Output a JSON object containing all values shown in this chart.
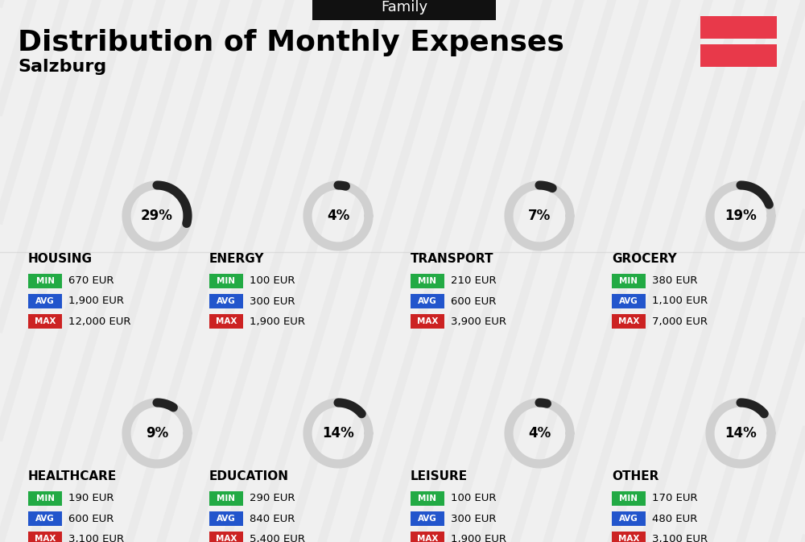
{
  "title": "Distribution of Monthly Expenses",
  "subtitle": "Salzburg",
  "header_label": "Family",
  "bg_color": "#f0f0f0",
  "categories": [
    {
      "name": "HOUSING",
      "pct": 29,
      "row": 0,
      "col": 0,
      "min": "670 EUR",
      "avg": "1,900 EUR",
      "max": "12,000 EUR"
    },
    {
      "name": "ENERGY",
      "pct": 4,
      "row": 0,
      "col": 1,
      "min": "100 EUR",
      "avg": "300 EUR",
      "max": "1,900 EUR"
    },
    {
      "name": "TRANSPORT",
      "pct": 7,
      "row": 0,
      "col": 2,
      "min": "210 EUR",
      "avg": "600 EUR",
      "max": "3,900 EUR"
    },
    {
      "name": "GROCERY",
      "pct": 19,
      "row": 0,
      "col": 3,
      "min": "380 EUR",
      "avg": "1,100 EUR",
      "max": "7,000 EUR"
    },
    {
      "name": "HEALTHCARE",
      "pct": 9,
      "row": 1,
      "col": 0,
      "min": "190 EUR",
      "avg": "600 EUR",
      "max": "3,100 EUR"
    },
    {
      "name": "EDUCATION",
      "pct": 14,
      "row": 1,
      "col": 1,
      "min": "290 EUR",
      "avg": "840 EUR",
      "max": "5,400 EUR"
    },
    {
      "name": "LEISURE",
      "pct": 4,
      "row": 1,
      "col": 2,
      "min": "100 EUR",
      "avg": "300 EUR",
      "max": "1,900 EUR"
    },
    {
      "name": "OTHER",
      "pct": 14,
      "row": 1,
      "col": 3,
      "min": "170 EUR",
      "avg": "480 EUR",
      "max": "3,100 EUR"
    }
  ],
  "color_min": "#22aa44",
  "color_avg": "#2255cc",
  "color_max": "#cc2222",
  "flag_color1": "#e8394a",
  "flag_color2": "#e8394a",
  "arc_color": "#222222",
  "arc_bg": "#d0d0d0"
}
